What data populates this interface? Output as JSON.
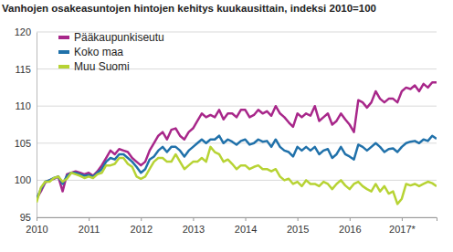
{
  "chart_data": {
    "type": "line",
    "title": "Vanhojen osakeasuntojen hintojen kehitys kuukausittain, indeksi 2010=100",
    "categories": [
      "2010",
      null,
      null,
      null,
      null,
      null,
      null,
      null,
      null,
      null,
      null,
      null,
      "2011",
      null,
      null,
      null,
      null,
      null,
      null,
      null,
      null,
      null,
      null,
      null,
      "2012",
      null,
      null,
      null,
      null,
      null,
      null,
      null,
      null,
      null,
      null,
      null,
      "2013",
      null,
      null,
      null,
      null,
      null,
      null,
      null,
      null,
      null,
      null,
      null,
      "2014",
      null,
      null,
      null,
      null,
      null,
      null,
      null,
      null,
      null,
      null,
      null,
      "2015",
      null,
      null,
      null,
      null,
      null,
      null,
      null,
      null,
      null,
      null,
      null,
      "2016",
      null,
      null,
      null,
      null,
      null,
      null,
      null,
      null,
      null,
      null,
      null,
      "2017*",
      null,
      null,
      null,
      null,
      null,
      null,
      null,
      null
    ],
    "series": [
      {
        "name": "Pääkaupunkiseutu",
        "color": "#a8278a",
        "values": [
          97.5,
          98.5,
          99.7,
          100,
          100.2,
          100.5,
          98.5,
          100.8,
          101,
          101.2,
          101,
          100.8,
          101,
          100.6,
          101.2,
          102,
          103,
          104,
          103.5,
          104.2,
          104,
          103.8,
          103,
          102.5,
          102,
          102.5,
          104,
          105,
          106,
          106.5,
          105.5,
          106.8,
          107,
          106,
          105.5,
          106.5,
          107,
          108,
          109,
          108.5,
          108.8,
          108.5,
          109.5,
          108.2,
          109,
          109,
          108.5,
          109.5,
          109.5,
          108.5,
          108.8,
          109.5,
          109,
          109.3,
          108.7,
          110,
          109,
          108.5,
          107.8,
          107.2,
          109,
          108.5,
          109,
          108.7,
          110,
          108,
          108.5,
          109,
          107.5,
          108,
          109,
          108.2,
          107.5,
          106.5,
          110.8,
          110.5,
          109.8,
          110.5,
          112,
          111,
          110.5,
          111,
          111,
          110.5,
          112,
          112.5,
          112.3,
          112.8,
          112,
          113,
          112.5,
          113.2,
          113.2
        ]
      },
      {
        "name": "Koko maa",
        "color": "#2071aa",
        "values": [
          97.5,
          98.8,
          99.8,
          100,
          100.3,
          100.5,
          99.5,
          100.6,
          101,
          101,
          100.8,
          100.6,
          100.7,
          100.5,
          101,
          101.5,
          102.5,
          103,
          102.8,
          103.5,
          103.5,
          103,
          102.5,
          101.8,
          101,
          101.5,
          102.8,
          103.2,
          104,
          104.5,
          103.8,
          104.5,
          104.5,
          104,
          103.2,
          104,
          104.5,
          105,
          105.5,
          105,
          105.5,
          105.5,
          106,
          105,
          105.5,
          105.2,
          104.8,
          105.3,
          105.5,
          104.8,
          105,
          105.5,
          105.2,
          105.3,
          104.5,
          105.5,
          104.5,
          104,
          103.8,
          103.2,
          104.5,
          104,
          104.5,
          104,
          104.5,
          103.5,
          104,
          104.2,
          103,
          103.5,
          104.5,
          103.5,
          103.2,
          102.8,
          104.8,
          104.5,
          104,
          104.5,
          105,
          104.5,
          103.8,
          104.2,
          104.3,
          103.8,
          104.5,
          105,
          105.2,
          105.3,
          105,
          105.5,
          105.3,
          106,
          105.6
        ]
      },
      {
        "name": "Muu Suomi",
        "color": "#b7d334",
        "values": [
          97,
          99,
          99.8,
          99.8,
          100.3,
          100.5,
          99.8,
          100.2,
          101,
          100.8,
          100.6,
          100.3,
          100.5,
          100.3,
          100.8,
          101,
          102,
          102,
          102.2,
          103,
          103,
          102.2,
          101.8,
          100.5,
          100.2,
          100.5,
          101.5,
          102.5,
          103,
          103,
          102.5,
          102.5,
          103.5,
          102.5,
          101.5,
          102,
          102.5,
          102.5,
          103,
          102.5,
          104.5,
          103.8,
          103.5,
          102.5,
          102.8,
          102.2,
          101.5,
          102,
          102,
          101.5,
          101.8,
          102,
          101.5,
          101.5,
          101.2,
          101.5,
          100.5,
          100,
          100.2,
          99.5,
          99.8,
          99.2,
          100,
          99.5,
          99.5,
          99.2,
          99.8,
          99.5,
          98.8,
          99.5,
          100,
          99.3,
          98.8,
          99.5,
          99.8,
          99.2,
          98.8,
          98.5,
          99.5,
          98.5,
          99.2,
          98.2,
          98.5,
          96.8,
          97.5,
          99.5,
          99.3,
          99.5,
          99.2,
          99.5,
          99.8,
          99.6,
          99.2
        ]
      }
    ],
    "ylim": [
      95,
      120
    ],
    "yticks": [
      95,
      100,
      105,
      110,
      115,
      120
    ],
    "grid": true,
    "legend": "top-left"
  }
}
